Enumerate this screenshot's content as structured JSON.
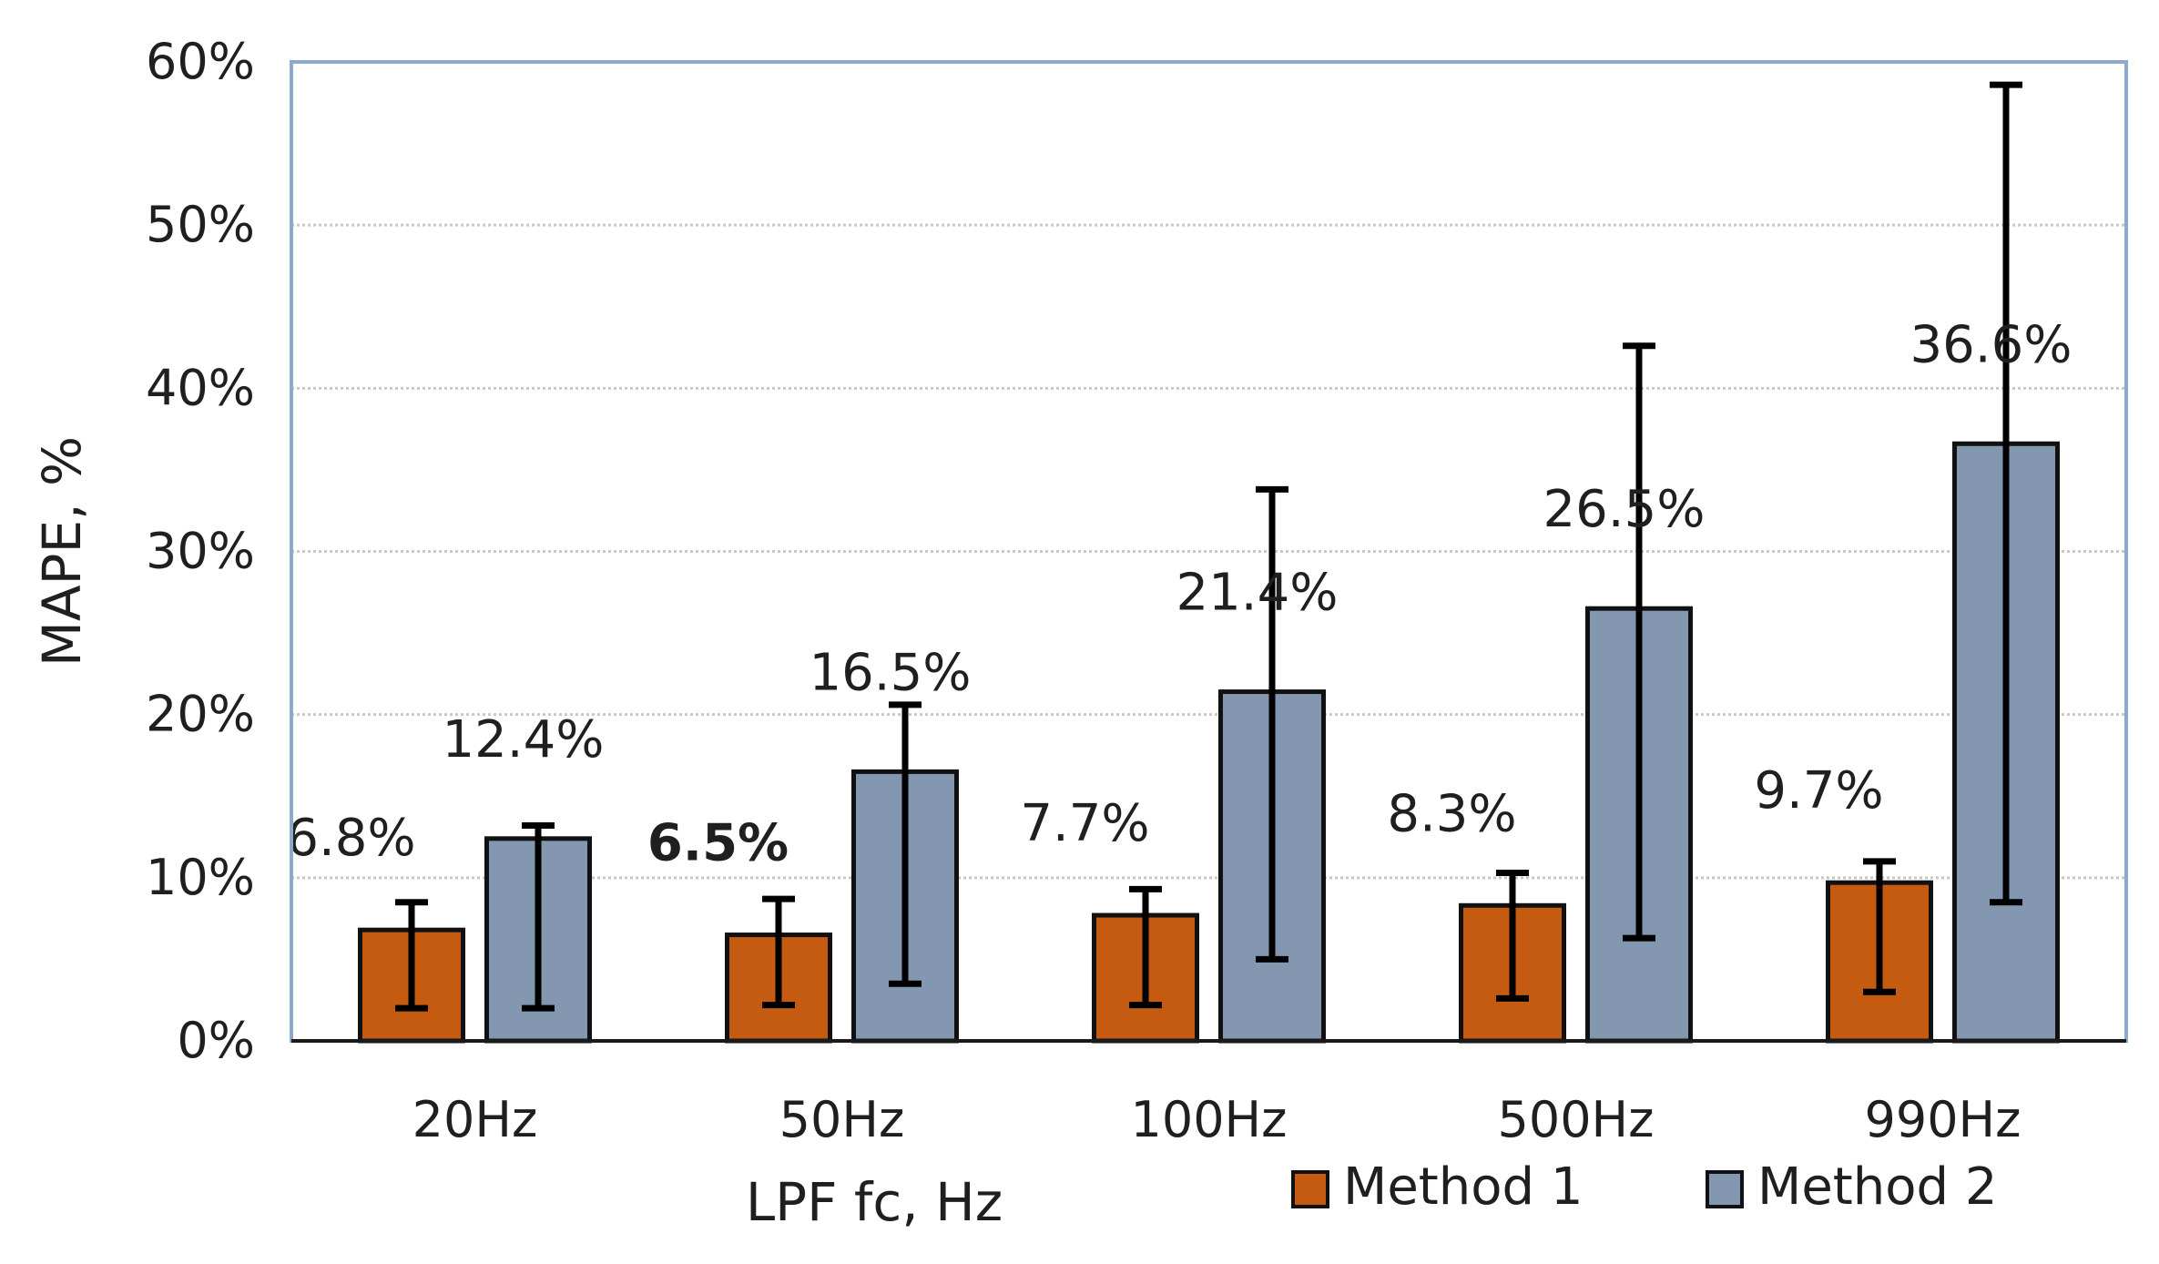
{
  "chart_data": {
    "type": "bar",
    "categories": [
      "20Hz",
      "50Hz",
      "100Hz",
      "500Hz",
      "990Hz"
    ],
    "series": [
      {
        "name": "Method 1",
        "color": "#c55a11",
        "values": [
          6.8,
          6.5,
          7.7,
          8.3,
          9.7
        ],
        "error_low": [
          2.0,
          2.2,
          2.2,
          2.6,
          3.0
        ],
        "error_high": [
          8.5,
          8.7,
          9.3,
          10.3,
          11.0
        ],
        "data_labels": [
          "6.8%",
          "6.5%",
          "7.7%",
          "8.3%",
          "9.7%"
        ],
        "label_bold": [
          false,
          true,
          false,
          false,
          false
        ]
      },
      {
        "name": "Method 2",
        "color": "#8497b0",
        "values": [
          12.4,
          16.5,
          21.4,
          26.5,
          36.6
        ],
        "error_low": [
          2.0,
          3.5,
          5.0,
          6.3,
          8.5
        ],
        "error_high": [
          13.2,
          20.6,
          33.8,
          42.6,
          58.6
        ],
        "data_labels": [
          "12.4%",
          "16.5%",
          "21.4%",
          "26.5%",
          "36.6%"
        ],
        "label_bold": [
          false,
          false,
          false,
          false,
          false
        ]
      }
    ],
    "xlabel": "LPF fc, Hz",
    "ylabel": "MAPE, %",
    "ylim": [
      0,
      60
    ],
    "yticks": [
      0,
      10,
      20,
      30,
      40,
      50,
      60
    ],
    "ytick_labels": [
      "0%",
      "10%",
      "20%",
      "30%",
      "40%",
      "50%",
      "60%"
    ],
    "grid": true,
    "legend_position": "bottom-right",
    "colors": {
      "grid": "#c8c8c8",
      "frame": "#8eaacb",
      "axis": "#1a1a1a",
      "bar_outline": "#111111",
      "error_bar": "#000000"
    }
  }
}
